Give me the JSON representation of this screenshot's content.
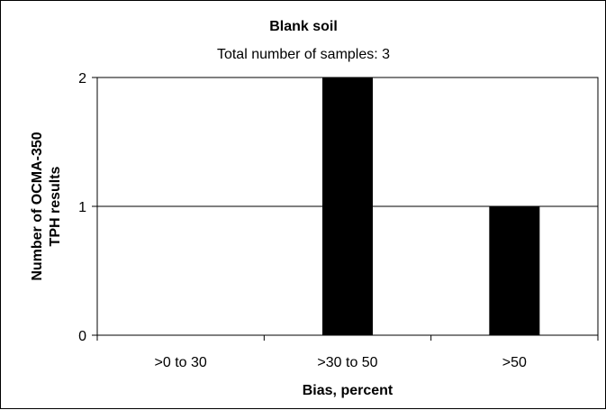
{
  "chart_data": {
    "type": "bar",
    "title": "Blank soil",
    "subtitle": "Total number of samples: 3",
    "categories": [
      ">0 to 30",
      ">30 to 50",
      ">50"
    ],
    "values": [
      0,
      2,
      1
    ],
    "xlabel": "Bias, percent",
    "ylabel_lines": [
      "Number of OCMA-350",
      "TPH results"
    ],
    "ylim": [
      0,
      2
    ],
    "yticks": [
      "0",
      "1",
      "2"
    ],
    "grid": true,
    "legend": "none",
    "bar_color": "#000000"
  }
}
